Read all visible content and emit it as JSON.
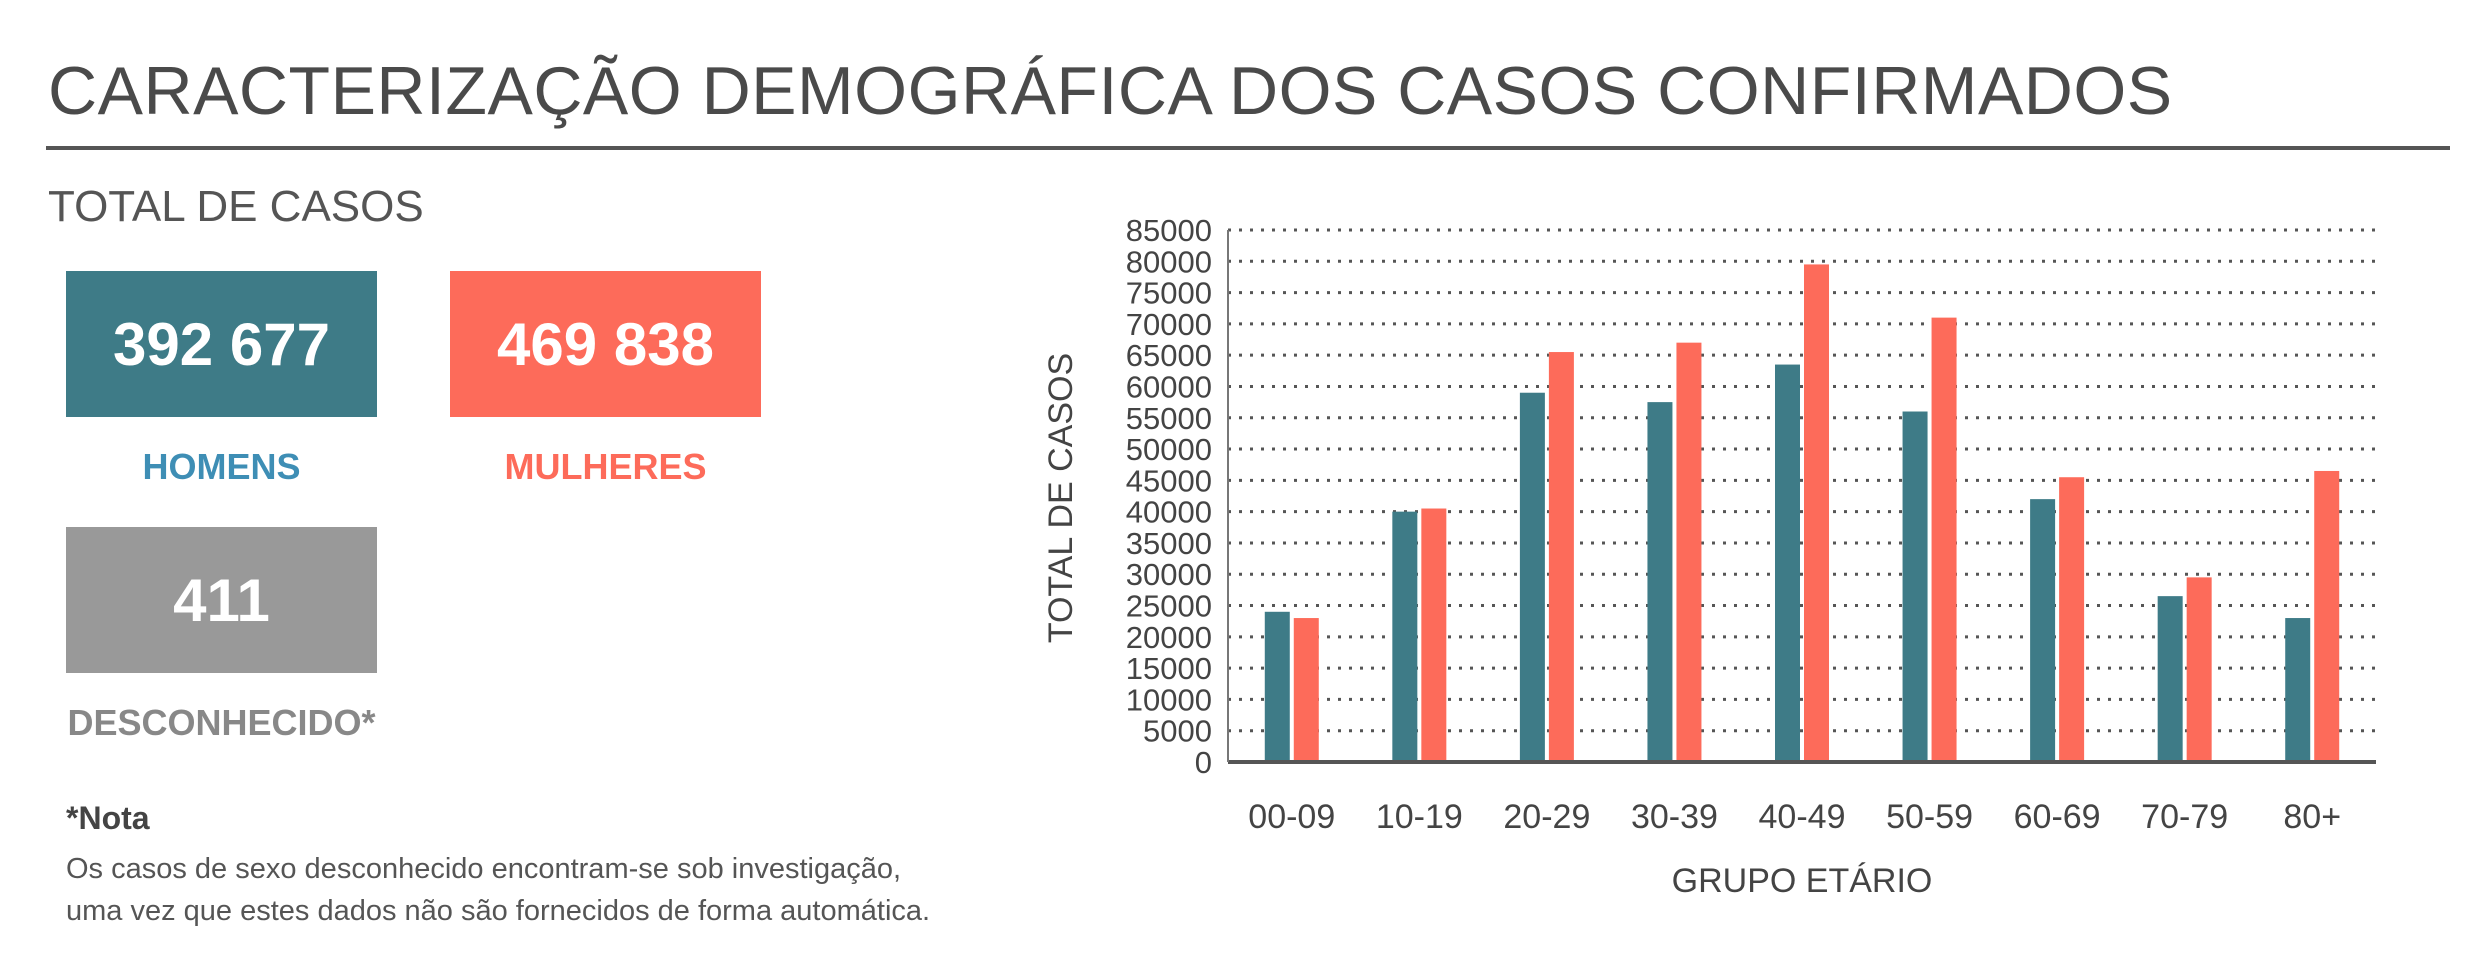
{
  "header": {
    "title": "CARACTERIZAÇÃO DEMOGRÁFICA DOS CASOS CONFIRMADOS",
    "subtitle": "TOTAL DE CASOS"
  },
  "totals": {
    "men": {
      "value": "392 677",
      "label": "HOMENS",
      "color": "#3e7b87"
    },
    "women": {
      "value": "469 838",
      "label": "MULHERES",
      "color": "#fd6b5a"
    },
    "unknown": {
      "value": "411",
      "label": "DESCONHECIDO*",
      "color": "#999999"
    }
  },
  "note": {
    "title": "*Nota",
    "line1": "Os casos de sexo desconhecido encontram-se sob investigação,",
    "line2": "uma vez que estes dados não são fornecidos de forma automática."
  },
  "chart_data": {
    "type": "bar",
    "categories": [
      "00-09",
      "10-19",
      "20-29",
      "30-39",
      "40-49",
      "50-59",
      "60-69",
      "70-79",
      "80+"
    ],
    "series": [
      {
        "values": [
          24000,
          40000,
          59000,
          57500,
          63500,
          56000,
          42000,
          26500,
          23000
        ],
        "color": "#3e7b87"
      },
      {
        "values": [
          23000,
          40500,
          65500,
          67000,
          79500,
          71000,
          45500,
          29500,
          46500
        ],
        "color": "#fd6b5a"
      }
    ],
    "xlabel": "GRUPO ETÁRIO",
    "ylabel": "TOTAL DE CASOS",
    "ylim": [
      0,
      85000
    ],
    "yticks": [
      "0",
      "5000",
      "10000",
      "15000",
      "20000",
      "25000",
      "30000",
      "35000",
      "40000",
      "45000",
      "50000",
      "55000",
      "60000",
      "65000",
      "70000",
      "75000",
      "80000",
      "85000"
    ],
    "grid": true
  }
}
